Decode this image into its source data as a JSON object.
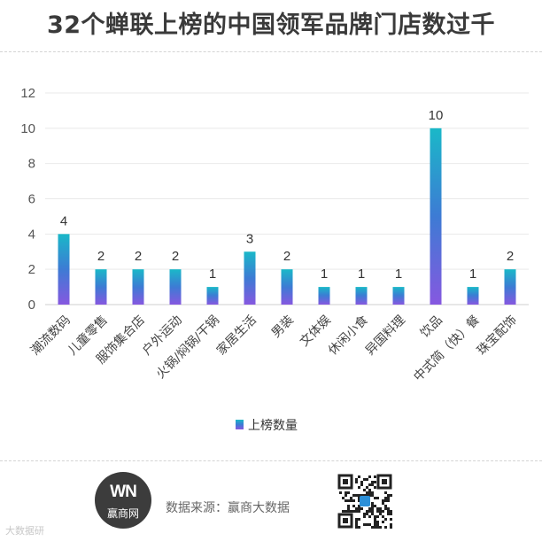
{
  "title": "32个蝉联上榜的中国领军品牌门店数过千",
  "footer": {
    "logo_mark": "WN",
    "logo_text": "赢商网",
    "source": "数据来源：赢商大数据",
    "watermark": "大数据研"
  },
  "chart_data": {
    "type": "bar",
    "categories": [
      "潮流数码",
      "儿童零售",
      "服饰集合店",
      "户外运动",
      "火锅/焖锅/干锅",
      "家居生活",
      "男装",
      "文体娱",
      "休闲小食",
      "异国料理",
      "饮品",
      "中式简（快）餐",
      "珠宝配饰"
    ],
    "series": [
      {
        "name": "上榜数量",
        "values": [
          4,
          2,
          2,
          2,
          1,
          3,
          2,
          1,
          1,
          1,
          10,
          1,
          2
        ]
      }
    ],
    "ylim": [
      0,
      12
    ],
    "yticks": [
      0,
      2,
      4,
      6,
      8,
      10,
      12
    ],
    "grid": true,
    "legend": "bottom",
    "colors": {
      "bar_top": "#1ab8c8",
      "bar_mid": "#3d7bd4",
      "bar_bottom": "#8658e0"
    }
  }
}
